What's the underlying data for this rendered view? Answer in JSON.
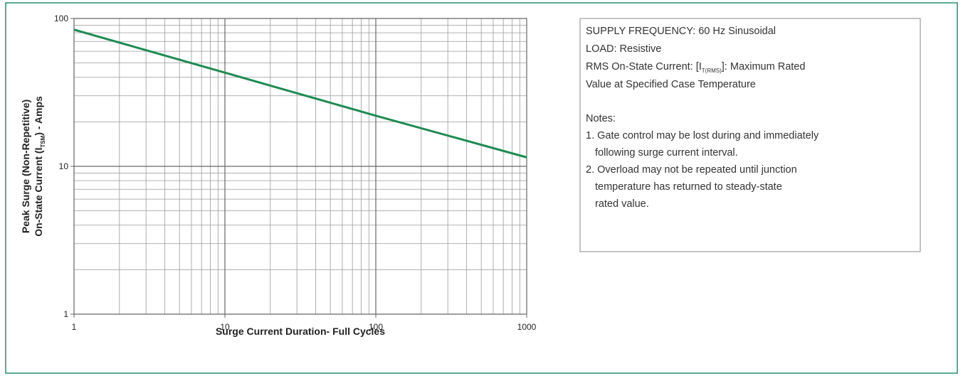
{
  "chart_data": {
    "type": "line",
    "xlabel": "Surge Current Duration- Full Cycles",
    "ylabel": {
      "line1": "Peak Surge (Non-Repetitive)",
      "line2": {
        "before": "On-State Current (I",
        "sub": "TSM",
        "after": ") - Amps"
      }
    },
    "x": [
      1,
      10,
      100,
      1000
    ],
    "series": [
      {
        "color": "#1f8a52",
        "values": [
          84,
          43,
          22,
          11.5
        ]
      }
    ],
    "xlim": [
      1,
      1000
    ],
    "xticks": [
      1,
      10,
      100,
      1000
    ],
    "ylim": [
      1,
      100
    ],
    "yticks": [
      1,
      10,
      100
    ],
    "xscale": "log",
    "yscale": "log",
    "grid": true
  },
  "notes_box": {
    "lines": [
      "SUPPLY FREQUENCY: 60 Hz Sinusoidal",
      "LOAD: Resistive"
    ],
    "rms": {
      "before": "RMS On-State Current: [I",
      "sub": "T(RMS)",
      "after": "]: Maximum Rated"
    },
    "rms_cont": "Value at Specified Case Temperature",
    "notes_title": "Notes:",
    "items": [
      [
        "1. Gate control may be lost during and immediately",
        "following surge current interval."
      ],
      [
        "2. Overload may not be repeated until junction",
        "temperature has returned to steady-state",
        "rated value."
      ]
    ]
  }
}
